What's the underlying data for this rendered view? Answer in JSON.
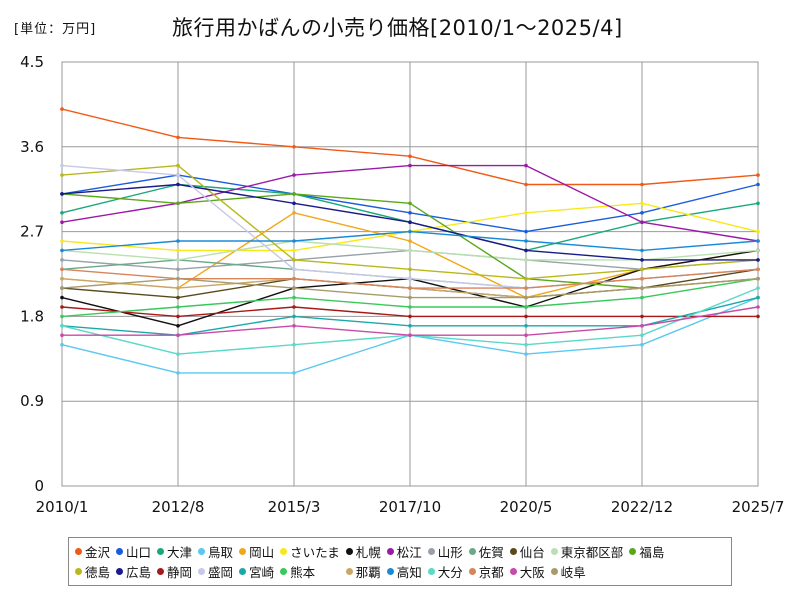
{
  "header": {
    "unit": "[単位：万円]",
    "title": "旅行用かばんの小売り価格[2010/1～2025/4]"
  },
  "chart_data": {
    "type": "line",
    "title": "旅行用かばんの小売り価格[2010/1～2025/4]",
    "unit": "[単位：万円]",
    "ylim": [
      0,
      4.5
    ],
    "yticks": [
      "0",
      "0.9",
      "1.8",
      "2.7",
      "3.6",
      "4.5"
    ],
    "xlim": [
      "2010/1",
      "2025/7"
    ],
    "xticks": [
      "2010/1",
      "2012/8",
      "2015/3",
      "2017/10",
      "2020/5",
      "2022/12",
      "2025/7"
    ],
    "grid": true,
    "legend_position": "bottom",
    "series": [
      {
        "name": "金沢",
        "color": "#f05a14",
        "values": [
          4.0,
          3.7,
          3.6,
          3.5,
          3.2,
          3.2,
          3.3
        ]
      },
      {
        "name": "山口",
        "color": "#1a5cdc",
        "values": [
          3.1,
          3.3,
          3.1,
          2.9,
          2.7,
          2.9,
          3.2
        ]
      },
      {
        "name": "大津",
        "color": "#1aa87a",
        "values": [
          2.9,
          3.2,
          3.1,
          2.8,
          2.5,
          2.8,
          3.0
        ]
      },
      {
        "name": "鳥取",
        "color": "#5ac8f0",
        "values": [
          1.5,
          1.2,
          1.2,
          1.6,
          1.4,
          1.5,
          2.0
        ]
      },
      {
        "name": "岡山",
        "color": "#f0a81a",
        "values": [
          2.2,
          2.1,
          2.9,
          2.6,
          2.0,
          2.3,
          2.5
        ]
      },
      {
        "name": "さいたま",
        "color": "#f8e81a",
        "values": [
          2.6,
          2.5,
          2.5,
          2.7,
          2.9,
          3.0,
          2.7
        ]
      },
      {
        "name": "札幌",
        "color": "#111111",
        "values": [
          2.0,
          1.7,
          2.1,
          2.2,
          1.9,
          2.3,
          2.5
        ]
      },
      {
        "name": "松江",
        "color": "#9a1aa8",
        "values": [
          2.8,
          3.0,
          3.3,
          3.4,
          3.4,
          2.8,
          2.6
        ]
      },
      {
        "name": "山形",
        "color": "#9aa0a8",
        "values": [
          2.4,
          2.3,
          2.4,
          2.5,
          2.4,
          2.3,
          2.4
        ]
      },
      {
        "name": "佐賀",
        "color": "#6aa88a",
        "values": [
          2.3,
          2.4,
          2.3,
          2.2,
          2.1,
          2.2,
          2.3
        ]
      },
      {
        "name": "仙台",
        "color": "#5a4a1a",
        "values": [
          2.1,
          2.0,
          2.2,
          2.1,
          2.0,
          2.1,
          2.3
        ]
      },
      {
        "name": "東京都区部",
        "color": "#b8e0b0",
        "values": [
          2.5,
          2.4,
          2.6,
          2.5,
          2.4,
          2.4,
          2.5
        ]
      },
      {
        "name": "福島",
        "color": "#5aa81a",
        "values": [
          3.1,
          3.0,
          3.1,
          3.0,
          2.2,
          2.1,
          2.2
        ]
      },
      {
        "name": "徳島",
        "color": "#b8b81a",
        "values": [
          3.3,
          3.4,
          2.4,
          2.3,
          2.2,
          2.3,
          2.4
        ]
      },
      {
        "name": "広島",
        "color": "#1a1a8a",
        "values": [
          3.1,
          3.2,
          3.0,
          2.8,
          2.5,
          2.4,
          2.4
        ]
      },
      {
        "name": "静岡",
        "color": "#a81a1a",
        "values": [
          1.9,
          1.8,
          1.9,
          1.8,
          1.8,
          1.8,
          1.8
        ]
      },
      {
        "name": "盛岡",
        "color": "#c8c8e8",
        "values": [
          3.4,
          3.3,
          2.3,
          2.2,
          2.1,
          2.2,
          2.3
        ]
      },
      {
        "name": "宮崎",
        "color": "#1aa8a8",
        "values": [
          1.7,
          1.6,
          1.8,
          1.7,
          1.7,
          1.7,
          2.0
        ]
      },
      {
        "name": "熊本",
        "color": "#3ac85a",
        "values": [
          1.8,
          1.9,
          2.0,
          1.9,
          1.9,
          2.0,
          2.2
        ]
      },
      {
        "name": "那覇",
        "color": "#c8a86a",
        "values": [
          2.2,
          2.1,
          2.2,
          2.1,
          2.0,
          2.1,
          2.2
        ]
      },
      {
        "name": "高知",
        "color": "#1a8ad8",
        "values": [
          2.5,
          2.6,
          2.6,
          2.7,
          2.6,
          2.5,
          2.6
        ]
      },
      {
        "name": "大分",
        "color": "#5ad8c8",
        "values": [
          1.7,
          1.4,
          1.5,
          1.6,
          1.5,
          1.6,
          2.1
        ]
      },
      {
        "name": "京都",
        "color": "#d8845a",
        "values": [
          2.3,
          2.2,
          2.2,
          2.1,
          2.1,
          2.2,
          2.3
        ]
      },
      {
        "name": "大阪",
        "color": "#c84aa8",
        "values": [
          1.6,
          1.6,
          1.7,
          1.6,
          1.6,
          1.7,
          1.9
        ]
      },
      {
        "name": "岐阜",
        "color": "#a89a6a",
        "values": [
          2.1,
          2.2,
          2.1,
          2.0,
          2.0,
          2.1,
          2.2
        ]
      }
    ]
  }
}
